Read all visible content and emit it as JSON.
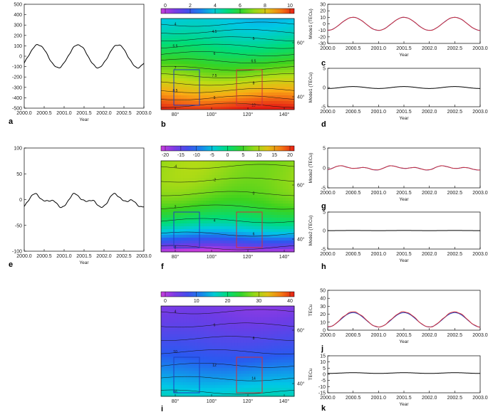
{
  "chart_data": [
    {
      "id": "a",
      "type": "line",
      "panel_label": "a",
      "xlabel": "Year",
      "ylabel": "",
      "xlim": [
        2000,
        2003
      ],
      "ylim": [
        -500,
        500
      ],
      "xticks": [
        "2000.0",
        "2000.5",
        "2001.0",
        "2001.5",
        "2002.0",
        "2002.5",
        "2003.0"
      ],
      "yticks": [
        "500",
        "400",
        "300",
        "200",
        "100",
        "0",
        "-100",
        "-200",
        "-300",
        "-400",
        "-500"
      ],
      "series": [
        {
          "mean": 0,
          "amp": 110,
          "phase_peak": 0.35,
          "noise": 6,
          "color": "#000000",
          "values_desc": "annual cycle peak ~110 near mid-year, trough ~-110 near year start/end"
        }
      ]
    },
    {
      "id": "b",
      "type": "heatmap",
      "panel_label": "b",
      "colorbar": {
        "ticks": [
          "0",
          "2",
          "4",
          "6",
          "8",
          "10"
        ],
        "range": [
          0,
          10
        ],
        "scheme": "rainbow"
      },
      "xticks": [
        "80°",
        "100°",
        "120°",
        "140°"
      ],
      "yticks": [
        "60°",
        "40°"
      ],
      "contour_labels": [
        "4",
        "4.5",
        "5",
        "5.5",
        "6",
        "6.5",
        "7",
        "7.5",
        "8",
        "8.5",
        "9",
        "10"
      ],
      "field": {
        "min": 3.8,
        "max": 10,
        "gradient": "south-high"
      },
      "boxes": [
        {
          "color": "#1f3fbf"
        },
        {
          "color": "#d0303a"
        }
      ]
    },
    {
      "id": "c",
      "type": "line",
      "panel_label": "c",
      "xlabel": "Year",
      "ylabel": "Mode1 (TECu)",
      "xlim": [
        2000,
        2003
      ],
      "ylim": [
        -30,
        30
      ],
      "xticks": [
        "2000.0",
        "2000.5",
        "2001.0",
        "2001.5",
        "2002.0",
        "2002.5",
        "2003.0"
      ],
      "yticks": [
        "30",
        "20",
        "10",
        "0",
        "-10",
        "-20",
        "-30"
      ],
      "series": [
        {
          "mean": 0,
          "amp": 10,
          "phase_peak": 0.5,
          "noise": 0,
          "color": "#2040c0"
        },
        {
          "mean": 0,
          "amp": 10,
          "phase_peak": 0.5,
          "noise": 0.3,
          "color": "#d0303a"
        }
      ]
    },
    {
      "id": "d",
      "type": "line",
      "panel_label": "d",
      "xlabel": "Year",
      "ylabel": "Mode1 (TECu)",
      "xlim": [
        2000,
        2003
      ],
      "ylim": [
        -5,
        5
      ],
      "xticks": [
        "2000.0",
        "2000.5",
        "2001.0",
        "2001.5",
        "2002.0",
        "2002.5",
        "2003.0"
      ],
      "yticks": [
        "5",
        "0",
        "-5"
      ],
      "series": [
        {
          "mean": 0,
          "amp": 0.25,
          "phase_peak": 0.5,
          "noise": 0,
          "color": "#000000"
        }
      ]
    },
    {
      "id": "e",
      "type": "line",
      "panel_label": "e",
      "xlabel": "Year",
      "ylabel": "",
      "xlim": [
        2000,
        2003
      ],
      "ylim": [
        -100,
        100
      ],
      "xticks": [
        "2000.0",
        "2000.5",
        "2001.0",
        "2001.5",
        "2002.0",
        "2002.5",
        "2003.0"
      ],
      "yticks": [
        "100",
        "50",
        "0",
        "-50",
        "-100"
      ],
      "series": [
        {
          "mean": -2,
          "amp": 9,
          "phase_peak": 0.35,
          "semi": 6,
          "noise": 1.5,
          "color": "#000000"
        }
      ]
    },
    {
      "id": "f",
      "type": "heatmap",
      "panel_label": "f",
      "colorbar": {
        "ticks": [
          "-20",
          "-15",
          "-10",
          "-5",
          "0",
          "5",
          "10",
          "15",
          "20"
        ],
        "range": [
          -20,
          20
        ],
        "scheme": "rainbow"
      },
      "xticks": [
        "80°",
        "100°",
        "120°",
        "140°"
      ],
      "yticks": [
        "60°",
        "40°"
      ],
      "contour_labels": [
        "-4",
        "-2",
        "0",
        "2",
        "4",
        "6",
        "8"
      ],
      "field": {
        "min": -20,
        "max": 8,
        "gradient": "south-low"
      },
      "boxes": [
        {
          "color": "#1f3fbf"
        },
        {
          "color": "#d0303a"
        }
      ]
    },
    {
      "id": "g",
      "type": "line",
      "panel_label": "g",
      "xlabel": "Year",
      "ylabel": "Mode2 (TECu)",
      "xlim": [
        2000,
        2003
      ],
      "ylim": [
        -5,
        5
      ],
      "xticks": [
        "2000.0",
        "2000.5",
        "2001.0",
        "2001.5",
        "2002.0",
        "2002.5",
        "2003.0"
      ],
      "yticks": [
        "5",
        "0",
        "-5"
      ],
      "series": [
        {
          "mean": 0,
          "amp": 0.3,
          "phase_peak": 0.35,
          "semi": 0.3,
          "noise": 0,
          "color": "#2040c0"
        },
        {
          "mean": 0,
          "amp": 0.3,
          "phase_peak": 0.35,
          "semi": 0.3,
          "noise": 0.05,
          "color": "#d0303a"
        }
      ]
    },
    {
      "id": "h",
      "type": "line",
      "panel_label": "h",
      "xlabel": "Year",
      "ylabel": "Mode2 (TECu)",
      "xlim": [
        2000,
        2003
      ],
      "ylim": [
        -5,
        5
      ],
      "xticks": [
        "2000.0",
        "2000.5",
        "2001.0",
        "2001.5",
        "2002.0",
        "2002.5",
        "2003.0"
      ],
      "yticks": [
        "5",
        "0",
        "-5"
      ],
      "series": [
        {
          "mean": 0,
          "amp": 0.02,
          "phase_peak": 0.5,
          "noise": 0,
          "color": "#000000"
        }
      ]
    },
    {
      "id": "i",
      "type": "heatmap",
      "panel_label": "i",
      "colorbar": {
        "ticks": [
          "0",
          "10",
          "20",
          "30",
          "40"
        ],
        "range": [
          0,
          40
        ],
        "scheme": "rainbow"
      },
      "xticks": [
        "80°",
        "100°",
        "120°",
        "140°"
      ],
      "yticks": [
        "60°",
        "40°"
      ],
      "contour_labels": [
        "4",
        "6",
        "8",
        "10",
        "12",
        "14",
        "16"
      ],
      "field": {
        "min": 4,
        "max": 17,
        "gradient": "south-high"
      },
      "boxes": [
        {
          "color": "#1f3fbf"
        },
        {
          "color": "#d0303a"
        }
      ]
    },
    {
      "id": "j",
      "type": "line",
      "panel_label": "j",
      "xlabel": "Year",
      "ylabel": "TECu",
      "xlim": [
        2000,
        2003
      ],
      "ylim": [
        0,
        50
      ],
      "xticks": [
        "2000.0",
        "2000.5",
        "2001.0",
        "2001.5",
        "2002.0",
        "2002.5",
        "2003.0"
      ],
      "yticks": [
        "50",
        "40",
        "30",
        "20",
        "10",
        "0"
      ],
      "series": [
        {
          "mean": 13,
          "amp": 9,
          "phase_peak": 0.5,
          "noise": 0,
          "color": "#2040c0"
        },
        {
          "mean": 13.5,
          "amp": 9.5,
          "phase_peak": 0.5,
          "noise": 0.4,
          "color": "#d0303a"
        }
      ]
    },
    {
      "id": "k",
      "type": "line",
      "panel_label": "k",
      "xlabel": "Year",
      "ylabel": "TECu",
      "xlim": [
        2000,
        2003
      ],
      "ylim": [
        -15,
        15
      ],
      "xticks": [
        "2000.0",
        "2000.5",
        "2001.0",
        "2001.5",
        "2002.0",
        "2002.5",
        "2003.0"
      ],
      "yticks": [
        "15",
        "10",
        "5",
        "0",
        "-5",
        "-10",
        "-15"
      ],
      "series": [
        {
          "mean": 1,
          "amp": 0.3,
          "phase_peak": 0.5,
          "noise": 0,
          "color": "#000000"
        }
      ]
    }
  ]
}
